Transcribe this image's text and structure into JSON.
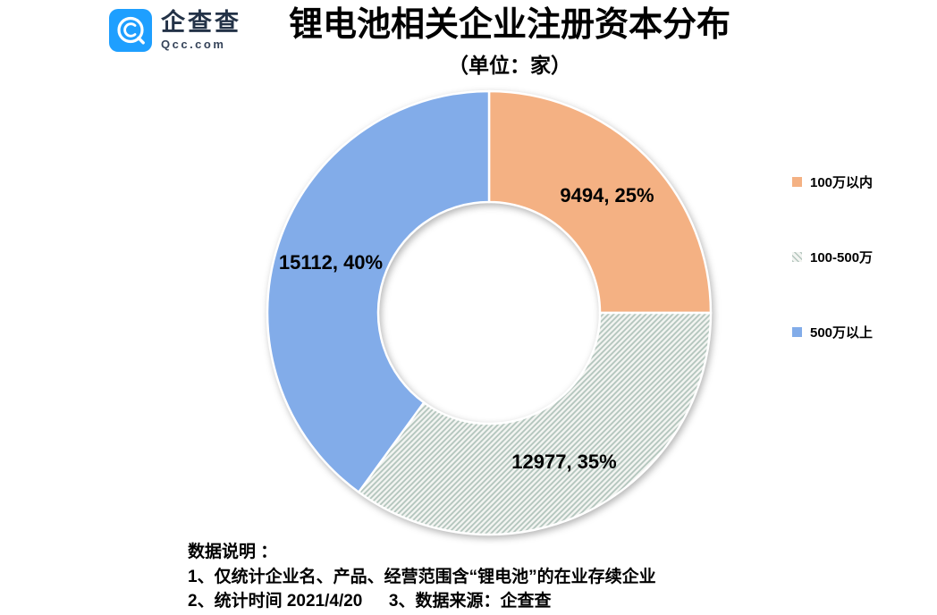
{
  "header": {
    "logo": {
      "name": "企查查",
      "domain": "Qcc.com",
      "tile_color": "#1E9FFF",
      "text_color": "#233247"
    },
    "title": "锂电池相关企业注册资本分布",
    "subtitle": "（单位：家）"
  },
  "chart_data": {
    "type": "pie",
    "donut": true,
    "hole_ratio": 0.5,
    "start_angle_deg": 0,
    "clockwise": true,
    "title": "锂电池相关企业注册资本分布",
    "unit": "家",
    "legend_position": "right",
    "total": 37583,
    "series": [
      {
        "name": "100万以内",
        "value": 9494,
        "pct": 25,
        "label": "9494, 25%",
        "fill": "solid",
        "color": "#F4B183"
      },
      {
        "name": "100-500万",
        "value": 12977,
        "pct": 35,
        "label": "12977, 35%",
        "fill": "hatch",
        "hatch_line_color": "#B3C5BD",
        "hatch_bg_color": "#F2F4F1"
      },
      {
        "name": "500万以上",
        "value": 15112,
        "pct": 40,
        "label": "15112, 40%",
        "fill": "solid",
        "color": "#82ACE9"
      }
    ]
  },
  "footer": {
    "heading": "数据说明 ：",
    "lines": [
      "数据说明 ：",
      "1、仅统计企业名、产品、经营范围含“锂电池”的在业存续企业",
      "2、统计时间 2021/4/20　  3、数据来源：企查查"
    ]
  }
}
